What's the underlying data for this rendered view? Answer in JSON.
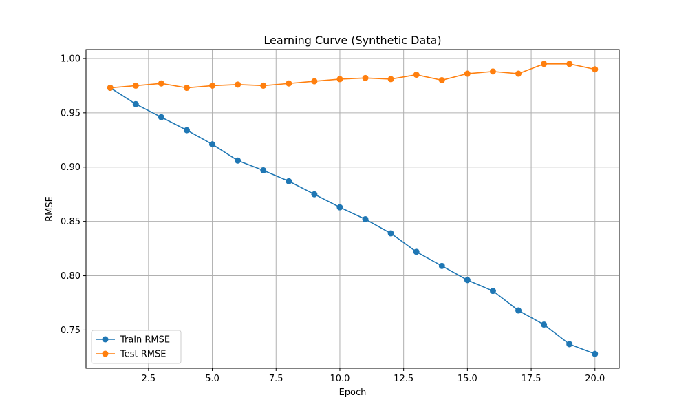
{
  "chart_data": {
    "type": "line",
    "title": "Learning Curve (Synthetic Data)",
    "xlabel": "Epoch",
    "ylabel": "RMSE",
    "x": [
      1,
      2,
      3,
      4,
      5,
      6,
      7,
      8,
      9,
      10,
      11,
      12,
      13,
      14,
      15,
      16,
      17,
      18,
      19,
      20
    ],
    "series": [
      {
        "name": "Train RMSE",
        "color": "#1f77b4",
        "marker": "circle",
        "values": [
          0.973,
          0.958,
          0.946,
          0.934,
          0.921,
          0.906,
          0.897,
          0.887,
          0.875,
          0.863,
          0.852,
          0.839,
          0.822,
          0.809,
          0.796,
          0.786,
          0.768,
          0.755,
          0.737,
          0.728
        ]
      },
      {
        "name": "Test RMSE",
        "color": "#ff7f0e",
        "marker": "circle",
        "values": [
          0.973,
          0.975,
          0.977,
          0.973,
          0.975,
          0.976,
          0.975,
          0.977,
          0.979,
          0.981,
          0.982,
          0.981,
          0.985,
          0.98,
          0.986,
          0.988,
          0.986,
          0.995,
          0.995,
          0.99
        ]
      }
    ],
    "xlim": [
      0.05,
      20.95
    ],
    "ylim": [
      0.7148,
      1.0082
    ],
    "xticks": [
      2.5,
      5.0,
      7.5,
      10.0,
      12.5,
      15.0,
      17.5,
      20.0
    ],
    "xtick_labels": [
      "2.5",
      "5.0",
      "7.5",
      "10.0",
      "12.5",
      "15.0",
      "17.5",
      "20.0"
    ],
    "yticks": [
      0.75,
      0.8,
      0.85,
      0.9,
      0.95,
      1.0
    ],
    "ytick_labels": [
      "0.75",
      "0.80",
      "0.85",
      "0.90",
      "0.95",
      "1.00"
    ],
    "grid": true,
    "legend": "lower-left"
  }
}
